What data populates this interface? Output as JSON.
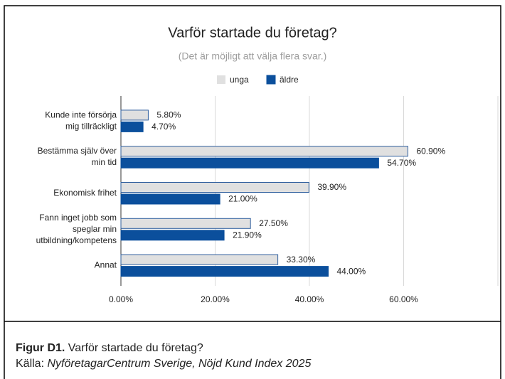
{
  "chart_data": {
    "type": "bar",
    "orientation": "horizontal",
    "title": "Varför startade du företag?",
    "subtitle": "(Det är möjligt att välja flera svar.)",
    "categories": [
      "Kunde inte försörja\nmig tillräckligt",
      "Bestämma själv över\nmin tid",
      "Ekonomisk frihet",
      "Fann inget jobb som\nspeglar min\nutbildning/kompetens",
      "Annat"
    ],
    "series": [
      {
        "name": "unga",
        "color": "#e0e0e0",
        "values": [
          5.8,
          60.9,
          39.9,
          27.5,
          33.3
        ],
        "value_labels": [
          "5.80%",
          "60.90%",
          "39.90%",
          "27.50%",
          "33.30%"
        ]
      },
      {
        "name": "äldre",
        "color": "#0b4f9c",
        "values": [
          4.7,
          54.7,
          21.0,
          21.9,
          44.0
        ],
        "value_labels": [
          "4.70%",
          "54.70%",
          "21.00%",
          "21.90%",
          "44.00%"
        ]
      }
    ],
    "xlim": [
      0,
      80
    ],
    "xticks": [
      {
        "value": 0,
        "label": "0.00%"
      },
      {
        "value": 20,
        "label": "20.00%"
      },
      {
        "value": 40,
        "label": "40.00%"
      },
      {
        "value": 60,
        "label": "60.00%"
      }
    ],
    "grid": true,
    "legend": "top"
  },
  "caption": {
    "figure": "Figur D1.",
    "text": " Varför startade du företag?",
    "source_prefix": "Källa: ",
    "source": "NyföretagarCentrum Sverige, Nöjd Kund Index 2025"
  }
}
